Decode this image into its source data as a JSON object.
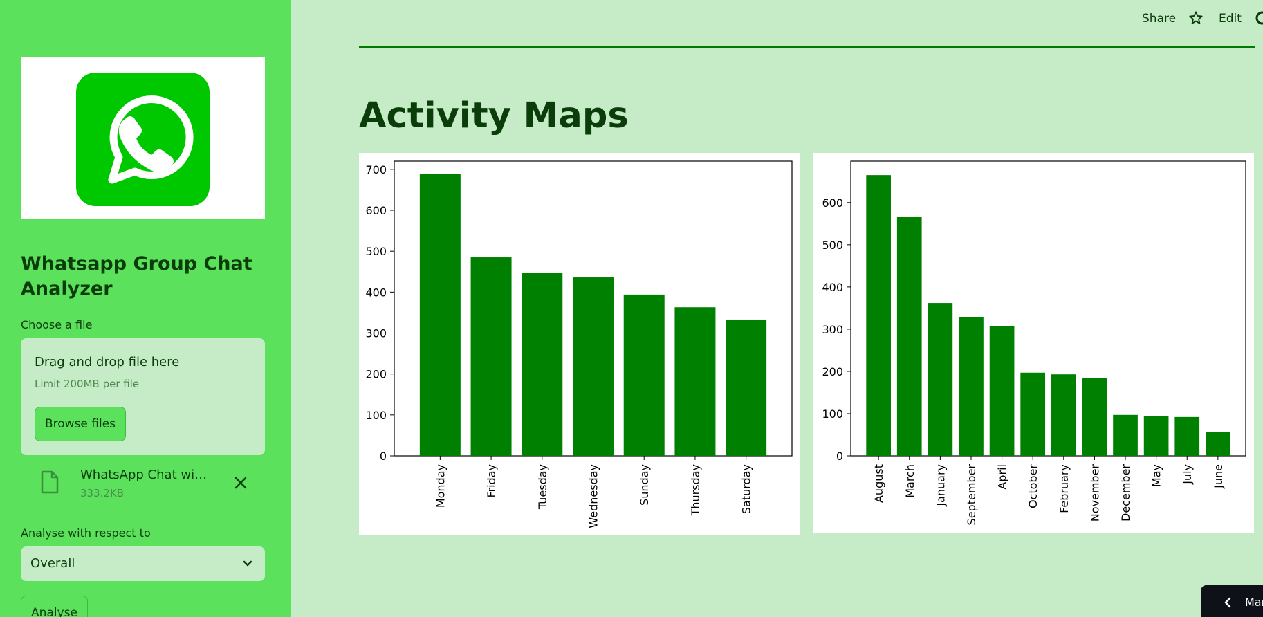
{
  "sidebar": {
    "app_title": "Whatsapp Group Chat Analyzer",
    "file_label": "Choose a file",
    "dropzone_title": "Drag and drop file here",
    "dropzone_limit": "Limit 200MB per file",
    "browse_label": "Browse files",
    "uploaded_file_name": "WhatsApp Chat with Me…",
    "uploaded_file_size": "333.2KB",
    "analyse_label": "Analyse with respect to",
    "analyse_selected": "Overall",
    "analyse_button": "Analyse"
  },
  "header": {
    "share_label": "Share",
    "edit_label": "Edit"
  },
  "main": {
    "title": "Activity Maps"
  },
  "mini_toolbar": {
    "label": "Mar"
  },
  "colors": {
    "sidebar_bg": "#5ce15c",
    "main_bg": "#c6ebc7",
    "bar": "#008000",
    "logo_green": "#00c800"
  },
  "chart_data": [
    {
      "type": "bar",
      "categories": [
        "Monday",
        "Friday",
        "Tuesday",
        "Wednesday",
        "Sunday",
        "Thursday",
        "Saturday"
      ],
      "values": [
        688,
        485,
        447,
        436,
        394,
        363,
        333
      ],
      "ylim": [
        0,
        720
      ],
      "yticks": [
        0,
        100,
        200,
        300,
        400,
        500,
        600,
        700
      ],
      "bar_color": "#008000",
      "grid": false
    },
    {
      "type": "bar",
      "categories": [
        "August",
        "March",
        "January",
        "September",
        "April",
        "October",
        "February",
        "November",
        "December",
        "May",
        "July",
        "June"
      ],
      "values": [
        665,
        567,
        362,
        328,
        307,
        197,
        193,
        184,
        97,
        95,
        92,
        56
      ],
      "ylim": [
        0,
        698
      ],
      "yticks": [
        0,
        100,
        200,
        300,
        400,
        500,
        600
      ],
      "bar_color": "#008000",
      "grid": false
    }
  ]
}
